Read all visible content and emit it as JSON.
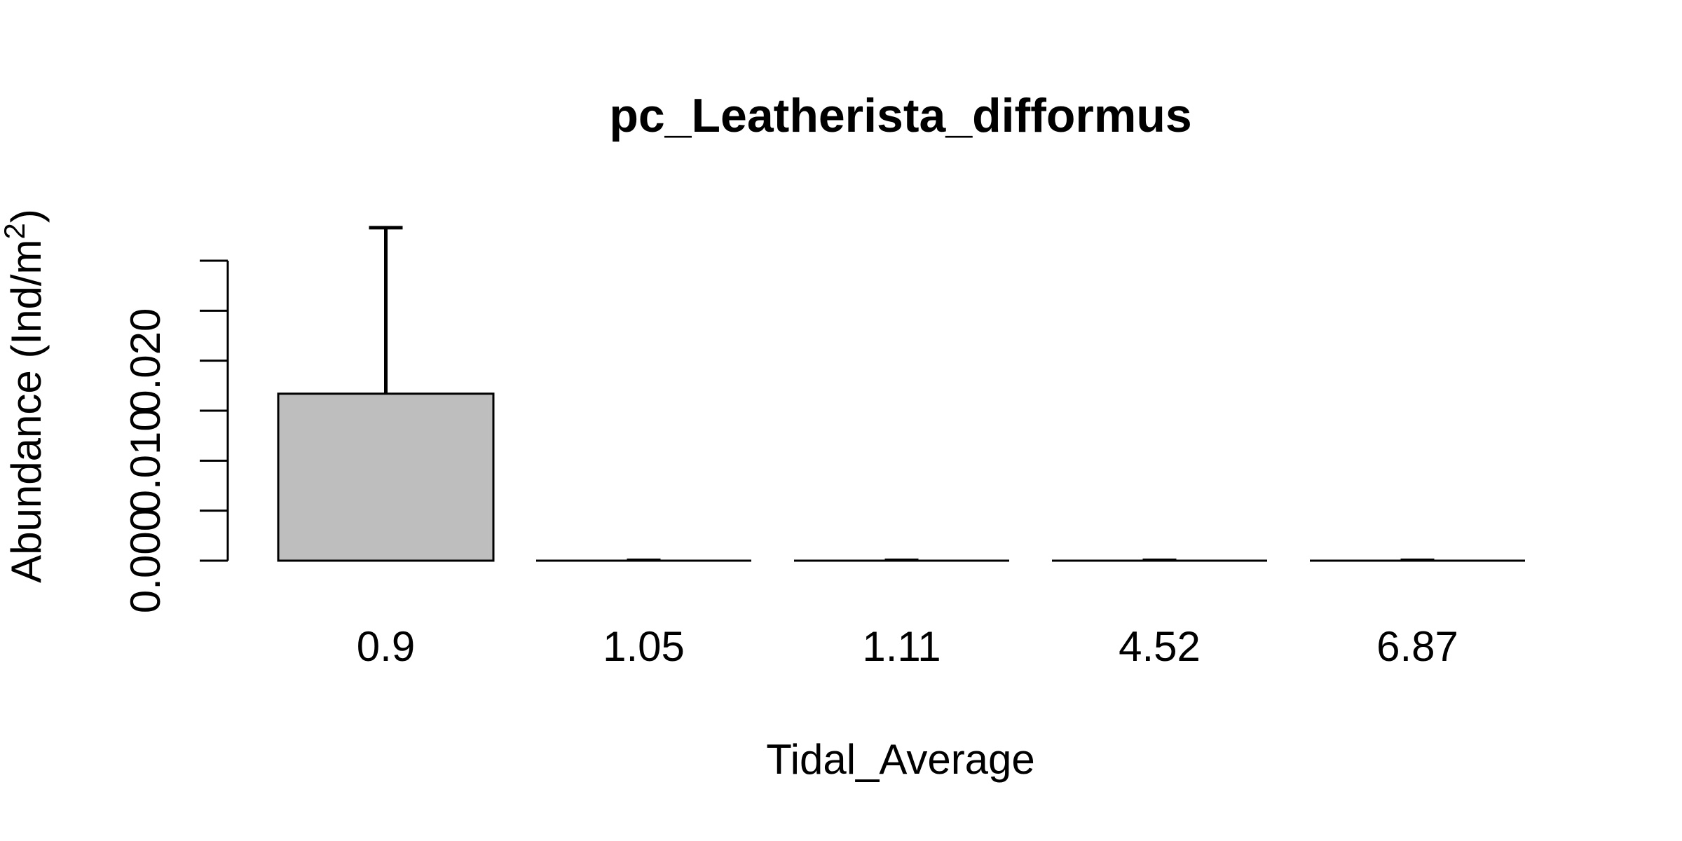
{
  "chart_data": {
    "type": "bar",
    "title": "pc_Leatherista_difformus",
    "xlabel": "Tidal_Average",
    "ylabel_main": "Abundance (Ind/m",
    "ylabel_sup": "2",
    "ylabel_close": ")",
    "categories": [
      "0.9",
      "1.05",
      "1.11",
      "4.52",
      "6.87"
    ],
    "values": [
      0.0167,
      0.0,
      0.0,
      0.0,
      0.0
    ],
    "error_upper": [
      0.0333,
      0.0,
      0.0,
      0.0,
      0.0
    ],
    "y_ticks": [
      0.0,
      0.005,
      0.01,
      0.015,
      0.02,
      0.025,
      0.03
    ],
    "y_tick_labels": [
      {
        "value": 0.0,
        "label": "0.000"
      },
      {
        "value": 0.01,
        "label": "0.010"
      },
      {
        "value": 0.02,
        "label": "0.020"
      }
    ],
    "ylim": [
      0,
      0.03
    ],
    "bar_color": "#bebebe",
    "grid": false
  }
}
